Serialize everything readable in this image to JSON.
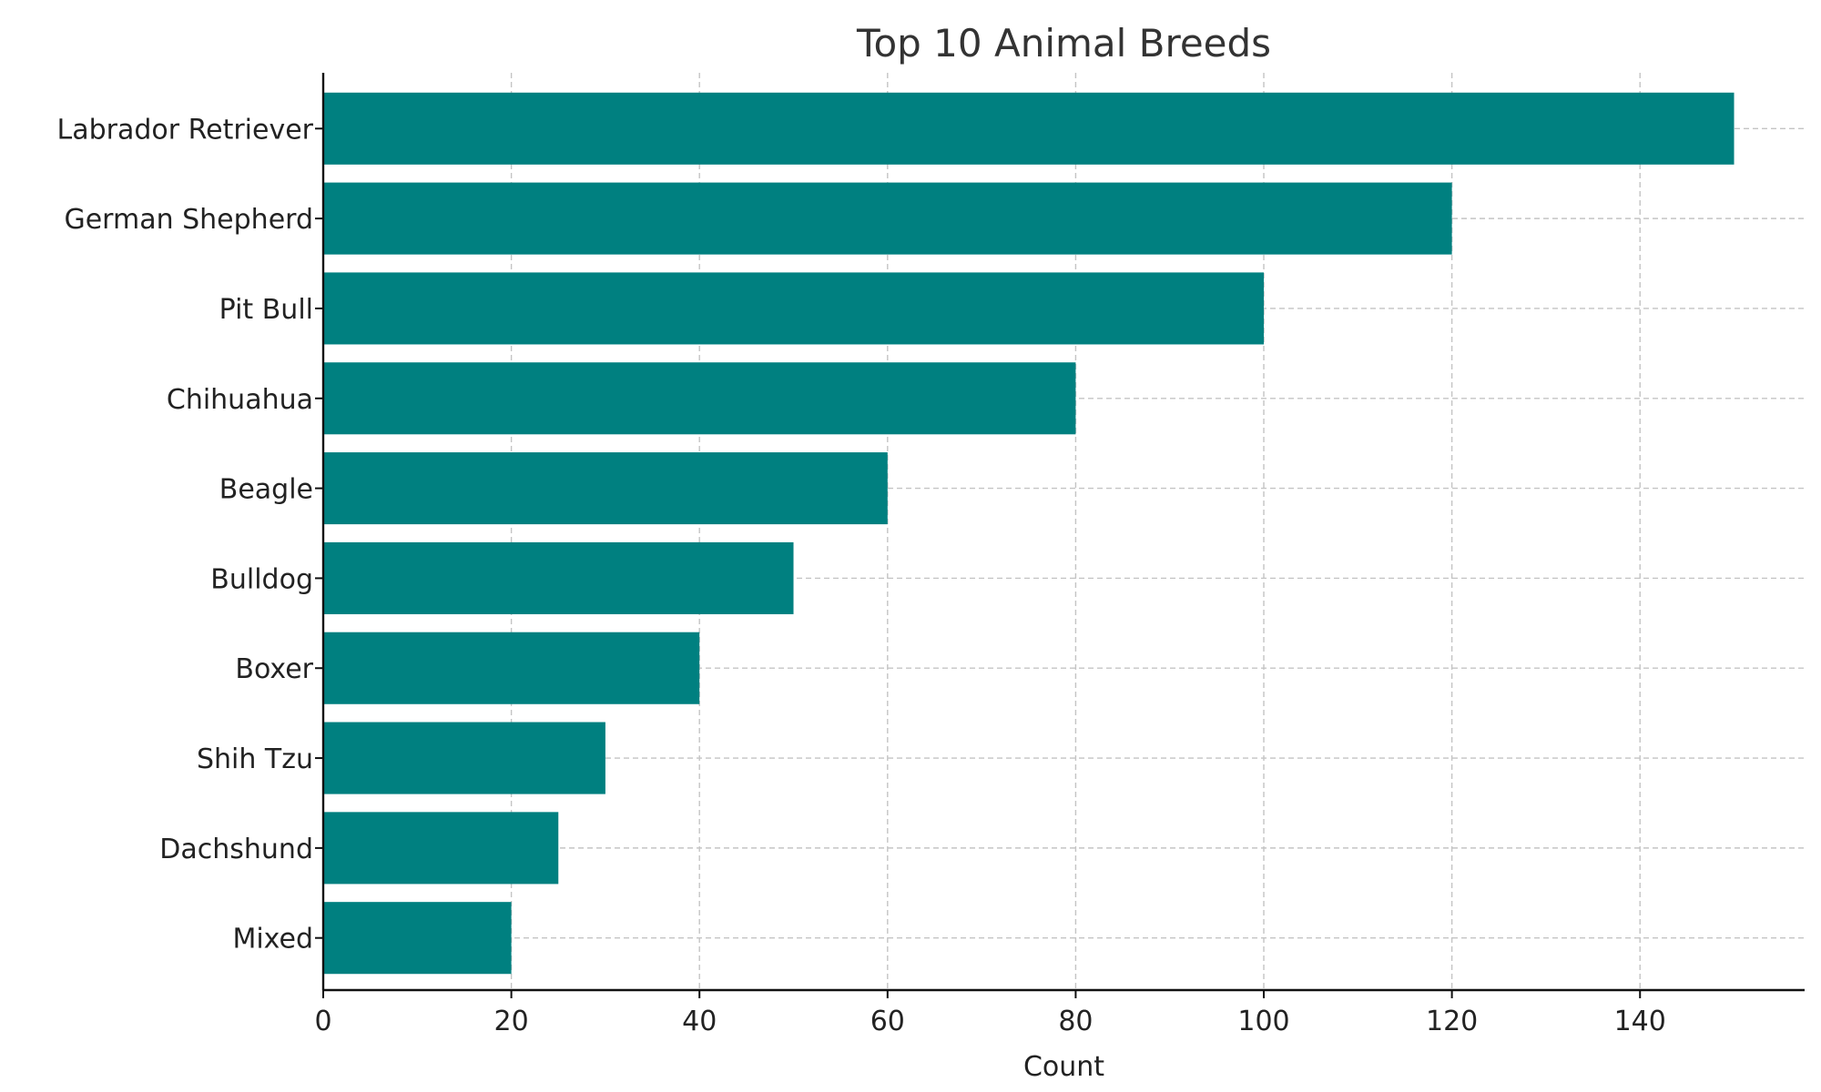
{
  "chart_data": {
    "type": "bar",
    "orientation": "horizontal",
    "title": "Top 10 Animal Breeds",
    "xlabel": "Count",
    "ylabel": "",
    "categories": [
      "Labrador Retriever",
      "German Shepherd",
      "Pit Bull",
      "Chihuahua",
      "Beagle",
      "Bulldog",
      "Boxer",
      "Shih Tzu",
      "Dachshund",
      "Mixed"
    ],
    "values": [
      150,
      120,
      100,
      80,
      60,
      50,
      40,
      30,
      25,
      20
    ],
    "xlim": [
      0,
      157.5
    ],
    "xticks": [
      0,
      20,
      40,
      60,
      80,
      100,
      120,
      140
    ],
    "grid": true,
    "bar_color": "#008080",
    "grid_color": "#c4c4c4",
    "legend": "none"
  }
}
